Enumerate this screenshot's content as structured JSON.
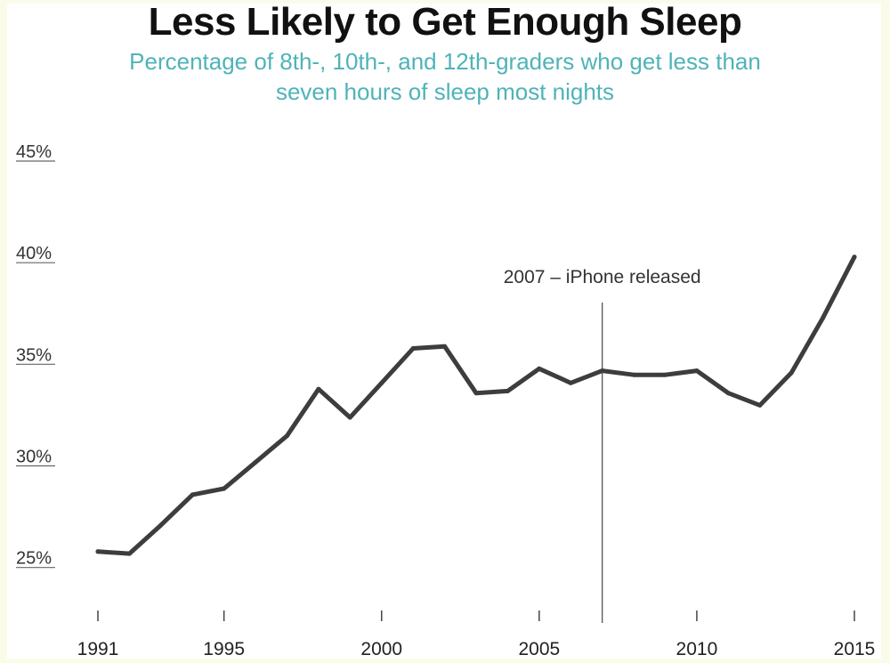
{
  "chart_data": {
    "type": "line",
    "title": "Less Likely to Get Enough Sleep",
    "subtitle": "Percentage of 8th-, 10th-, and 12th-graders who get less than seven hours of sleep most nights",
    "xlabel": "",
    "ylabel": "",
    "x": [
      1991,
      1992,
      1993,
      1994,
      1995,
      1996,
      1997,
      1998,
      1999,
      2000,
      2001,
      2002,
      2003,
      2004,
      2005,
      2006,
      2007,
      2008,
      2009,
      2010,
      2011,
      2012,
      2013,
      2014,
      2015
    ],
    "series": [
      {
        "values": [
          25.3,
          25.2,
          26.6,
          28.1,
          28.4,
          29.7,
          31.0,
          33.3,
          31.9,
          33.6,
          35.3,
          35.4,
          33.1,
          33.2,
          34.3,
          33.6,
          34.2,
          34.0,
          34.0,
          34.2,
          33.1,
          32.5,
          34.1,
          36.8,
          39.8
        ]
      }
    ],
    "xlim": [
      1991,
      2015
    ],
    "ylim": [
      21,
      45
    ],
    "x_ticks": [
      "1991",
      "1995",
      "2000",
      "2005",
      "2010",
      "2015"
    ],
    "y_ticks": [
      "25%",
      "30%",
      "35%",
      "40%",
      "45%"
    ],
    "grid": false,
    "line_color": "#3d3d3d",
    "annotations": [
      {
        "x": 2007,
        "label": "2007 – iPhone released"
      }
    ]
  }
}
